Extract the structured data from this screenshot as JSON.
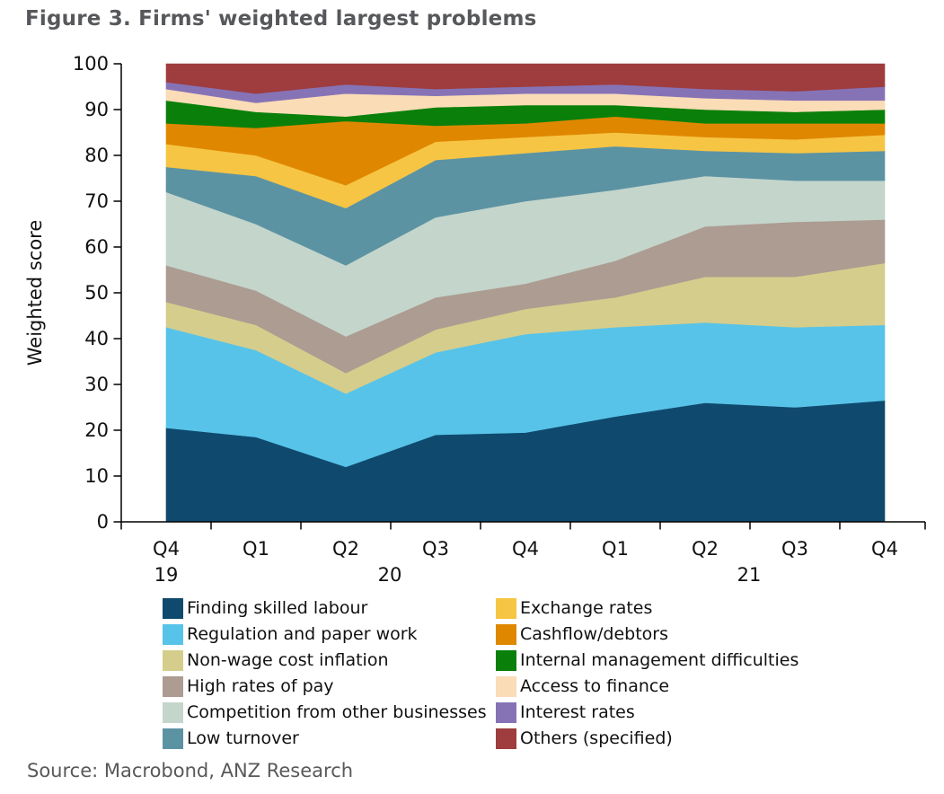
{
  "title": "Figure 3. Firms' weighted largest problems",
  "source": "Source: Macrobond, ANZ Research",
  "chart_data": {
    "type": "area",
    "stacked": true,
    "title": "Figure 3. Firms' weighted largest problems",
    "xlabel": "",
    "ylabel": "Weighted score",
    "ylim": [
      0,
      100
    ],
    "y_ticks": [
      0,
      10,
      20,
      30,
      40,
      50,
      60,
      70,
      80,
      90,
      100
    ],
    "grid": false,
    "legend_position": "bottom",
    "categories": [
      "Q4 19",
      "Q1 20",
      "Q2 20",
      "Q3 20",
      "Q4 20",
      "Q1 21",
      "Q2 21",
      "Q3 21",
      "Q4 21"
    ],
    "x_quarter_labels": [
      "Q4",
      "Q1",
      "Q2",
      "Q3",
      "Q4",
      "Q1",
      "Q2",
      "Q3",
      "Q4"
    ],
    "x_year_labels": [
      "19",
      "20",
      "21"
    ],
    "series": [
      {
        "name": "Finding skilled labour",
        "color": "#0F4A6E",
        "values": [
          20.5,
          18.5,
          12,
          19,
          19.5,
          23,
          26,
          25,
          26.5
        ]
      },
      {
        "name": "Regulation and paper work",
        "color": "#58C3E8",
        "values": [
          22,
          19,
          16,
          18,
          21.5,
          19.5,
          17.5,
          17.5,
          16.5
        ]
      },
      {
        "name": "Non-wage cost inflation",
        "color": "#D5CD8C",
        "values": [
          5.5,
          5.5,
          4.5,
          5,
          5.5,
          6.5,
          10,
          11,
          13.5
        ]
      },
      {
        "name": "High rates of pay",
        "color": "#AC9C92",
        "values": [
          8,
          7.5,
          8,
          7,
          5.5,
          8,
          11,
          12,
          9.5
        ]
      },
      {
        "name": "Competition from other businesses",
        "color": "#C4D5CB",
        "values": [
          16,
          14.5,
          15.5,
          17.5,
          18,
          15.5,
          11,
          9,
          8.5
        ]
      },
      {
        "name": "Low turnover",
        "color": "#5C93A3",
        "values": [
          5.5,
          10.5,
          12.5,
          12.5,
          10.5,
          9.5,
          5.5,
          6,
          6.5
        ]
      },
      {
        "name": "Exchange rates",
        "color": "#F6C543",
        "values": [
          5,
          4.5,
          5,
          4,
          3.5,
          3,
          3,
          3,
          3.5
        ]
      },
      {
        "name": "Cashflow/debtors",
        "color": "#E08700",
        "values": [
          4.5,
          6,
          14,
          3.5,
          3,
          3.5,
          3,
          3.5,
          2.5
        ]
      },
      {
        "name": "Internal management difficulties",
        "color": "#0A800A",
        "values": [
          5,
          3.5,
          1,
          4,
          4,
          2.5,
          3,
          2.5,
          3
        ]
      },
      {
        "name": "Access to finance",
        "color": "#FADCB7",
        "values": [
          2.5,
          2,
          5,
          2.5,
          2.5,
          2.5,
          2.5,
          2.5,
          2
        ]
      },
      {
        "name": "Interest rates",
        "color": "#8673B6",
        "values": [
          1.5,
          2,
          2,
          1.5,
          1.5,
          2,
          2,
          2,
          3
        ]
      },
      {
        "name": "Others (specified)",
        "color": "#9E3C3E",
        "values": [
          4,
          6.5,
          4.5,
          5.5,
          5,
          4.5,
          5.5,
          6,
          5
        ]
      }
    ]
  }
}
